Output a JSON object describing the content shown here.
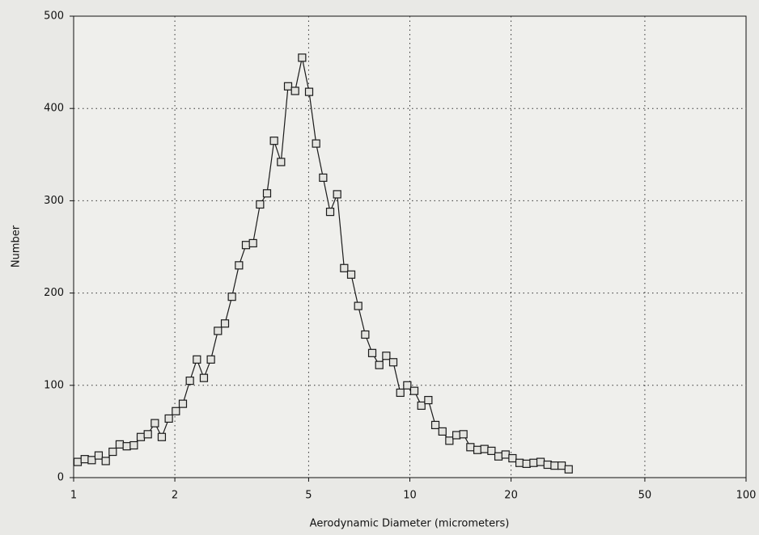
{
  "chart_data": {
    "type": "line",
    "xlabel": "Aerodynamic Diameter (micrometers)",
    "ylabel": "Number",
    "x": [
      1.028,
      1.079,
      1.132,
      1.187,
      1.246,
      1.307,
      1.371,
      1.439,
      1.51,
      1.584,
      1.662,
      1.744,
      1.829,
      1.919,
      2.014,
      2.113,
      2.217,
      2.326,
      2.44,
      2.56,
      2.686,
      2.819,
      2.957,
      3.103,
      3.255,
      3.416,
      3.584,
      3.76,
      3.945,
      4.139,
      4.343,
      4.557,
      4.781,
      5.016,
      5.263,
      5.522,
      5.794,
      6.079,
      6.378,
      6.692,
      7.021,
      7.367,
      7.729,
      8.11,
      8.509,
      8.927,
      9.367,
      9.827,
      10.31,
      10.82,
      11.35,
      11.91,
      12.5,
      13.11,
      13.76,
      14.43,
      15.14,
      15.89,
      16.67,
      17.49,
      18.35,
      19.26,
      20.2,
      21.2,
      22.24,
      23.33,
      24.48,
      25.69,
      26.95,
      28.28,
      29.67
    ],
    "values": [
      17,
      20,
      19,
      24,
      18,
      28,
      36,
      34,
      35,
      44,
      47,
      59,
      44,
      64,
      72,
      80,
      105,
      128,
      108,
      128,
      159,
      167,
      196,
      230,
      252,
      254,
      296,
      308,
      365,
      342,
      424,
      419,
      455,
      418,
      362,
      325,
      288,
      307,
      227,
      220,
      186,
      155,
      135,
      122,
      132,
      125,
      92,
      100,
      94,
      78,
      84,
      57,
      50,
      40,
      46,
      47,
      33,
      30,
      31,
      29,
      23,
      25,
      21,
      16,
      15,
      16,
      17,
      14,
      13,
      13,
      9
    ],
    "color": "#1a1a1a",
    "marker": "square",
    "xscale": "log",
    "xlim": [
      1,
      100
    ],
    "xticks": [
      1,
      2,
      5,
      10,
      20,
      50,
      100
    ],
    "ylim": [
      0,
      500
    ],
    "yticks": [
      0,
      100,
      200,
      300,
      400,
      500
    ],
    "grid": true
  }
}
